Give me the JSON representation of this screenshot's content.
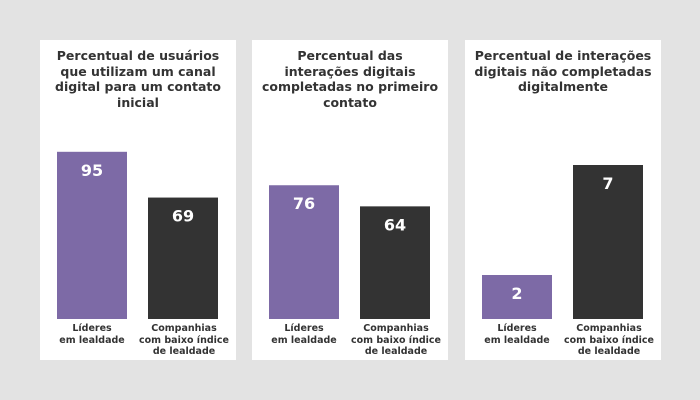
{
  "chart_data": [
    {
      "type": "bar",
      "title": "Percentual de usuários que utilizam um canal digital para um contato inicial",
      "categories": [
        "Líderes\nem lealdade",
        "Companhias\ncom baixo índice\nde lealdade"
      ],
      "values": [
        95,
        69
      ],
      "colors": [
        "#7d6aa6",
        "#333333"
      ],
      "ylim": [
        0,
        100
      ],
      "xlabel": "",
      "ylabel": ""
    },
    {
      "type": "bar",
      "title": "Percentual das interações digitais completadas no primeiro contato",
      "categories": [
        "Líderes\nem lealdade",
        "Companhias\ncom baixo índice\nde lealdade"
      ],
      "values": [
        76,
        64
      ],
      "colors": [
        "#7d6aa6",
        "#333333"
      ],
      "ylim": [
        0,
        100
      ],
      "xlabel": "",
      "ylabel": ""
    },
    {
      "type": "bar",
      "title": "Percentual de interações digitais não completadas digitalmente",
      "categories": [
        "Líderes\nem lealdade",
        "Companhias\ncom baixo índice\nde lealdade"
      ],
      "values": [
        2,
        7
      ],
      "colors": [
        "#7d6aa6",
        "#333333"
      ],
      "ylim": [
        0,
        8
      ],
      "xlabel": "",
      "ylabel": ""
    }
  ]
}
